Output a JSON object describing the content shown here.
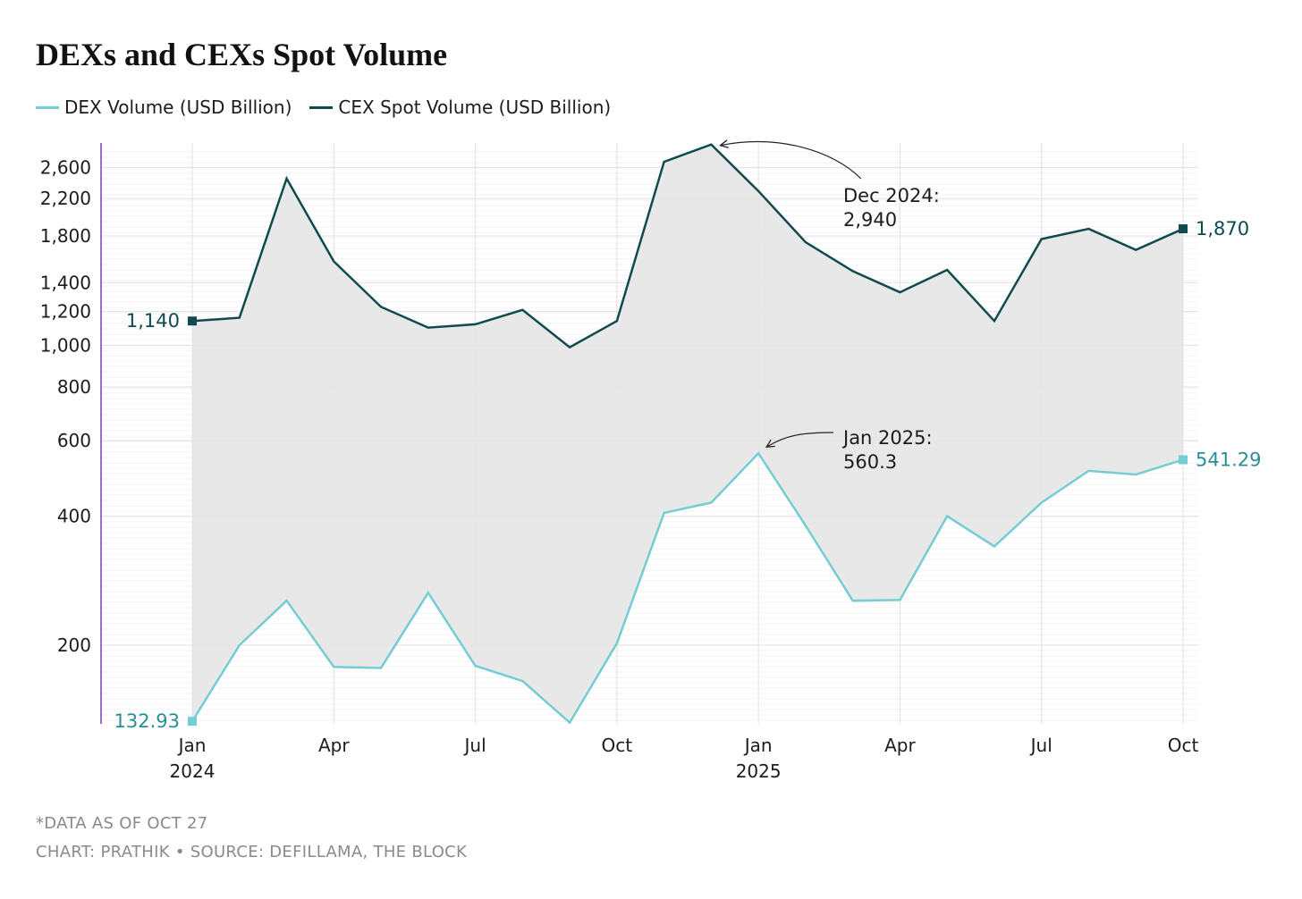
{
  "title": "DEXs and CEXs Spot Volume",
  "legend": [
    {
      "label": "DEX Volume (USD Billion)",
      "color": "#74cdd3"
    },
    {
      "label": "CEX Spot Volume (USD Billion)",
      "color": "#0f4a4f"
    }
  ],
  "footnotes": {
    "note": "*DATA AS OF OCT 27",
    "source": "CHART: PRATHIK • SOURCE: DEFILLAMA, THE BLOCK"
  },
  "chart_data": {
    "type": "line",
    "title": "DEXs and CEXs Spot Volume",
    "xlabel": "",
    "ylabel": "",
    "y_scale": "log",
    "ylim": [
      130,
      2960
    ],
    "y_ticks": [
      200,
      400,
      600,
      800,
      1000,
      1200,
      1400,
      1800,
      2200,
      2600
    ],
    "y_tick_labels": [
      "200",
      "400",
      "600",
      "800",
      "1,000",
      "1,200",
      "1,400",
      "1,800",
      "2,200",
      "2,600"
    ],
    "x": [
      "2024-01",
      "2024-02",
      "2024-03",
      "2024-04",
      "2024-05",
      "2024-06",
      "2024-07",
      "2024-08",
      "2024-09",
      "2024-10",
      "2024-11",
      "2024-12",
      "2025-01",
      "2025-02",
      "2025-03",
      "2025-04",
      "2025-05",
      "2025-06",
      "2025-07",
      "2025-08",
      "2025-09",
      "2025-10"
    ],
    "x_tick_labels": [
      {
        "x": "2024-01",
        "label": "Jan",
        "sublabel": "2024"
      },
      {
        "x": "2024-04",
        "label": "Apr",
        "sublabel": ""
      },
      {
        "x": "2024-07",
        "label": "Jul",
        "sublabel": ""
      },
      {
        "x": "2024-10",
        "label": "Oct",
        "sublabel": ""
      },
      {
        "x": "2025-01",
        "label": "Jan",
        "sublabel": "2025"
      },
      {
        "x": "2025-04",
        "label": "Apr",
        "sublabel": ""
      },
      {
        "x": "2025-07",
        "label": "Jul",
        "sublabel": ""
      },
      {
        "x": "2025-10",
        "label": "Oct",
        "sublabel": ""
      }
    ],
    "series": [
      {
        "name": "CEX Spot Volume (USD Billion)",
        "color": "#0f4a4f",
        "values": [
          1140,
          1160,
          2450,
          1570,
          1230,
          1100,
          1120,
          1210,
          990,
          1140,
          2680,
          2940,
          2290,
          1740,
          1490,
          1330,
          1500,
          1140,
          1770,
          1870,
          1670,
          1870
        ]
      },
      {
        "name": "DEX Volume (USD Billion)",
        "color": "#74cdd3",
        "values": [
          132.93,
          200,
          254,
          178,
          177,
          265,
          179,
          165,
          132,
          202,
          407,
          430,
          560.3,
          380,
          254,
          255,
          400,
          340,
          430,
          510,
          500,
          541.29
        ]
      }
    ],
    "end_labels": [
      {
        "series": "CEX Spot Volume (USD Billion)",
        "start": "1,140",
        "end": "1,870"
      },
      {
        "series": "DEX Volume (USD Billion)",
        "start": "132.93",
        "end": "541.29"
      }
    ],
    "annotations": [
      {
        "series": "CEX Spot Volume (USD Billion)",
        "x": "2024-12",
        "line1": "Dec 2024:",
        "line2": "2,940"
      },
      {
        "series": "DEX Volume (USD Billion)",
        "x": "2025-01",
        "line1": "Jan 2025:",
        "line2": "560.3"
      }
    ],
    "fill_between": "#e6e6e6",
    "grid": true
  }
}
